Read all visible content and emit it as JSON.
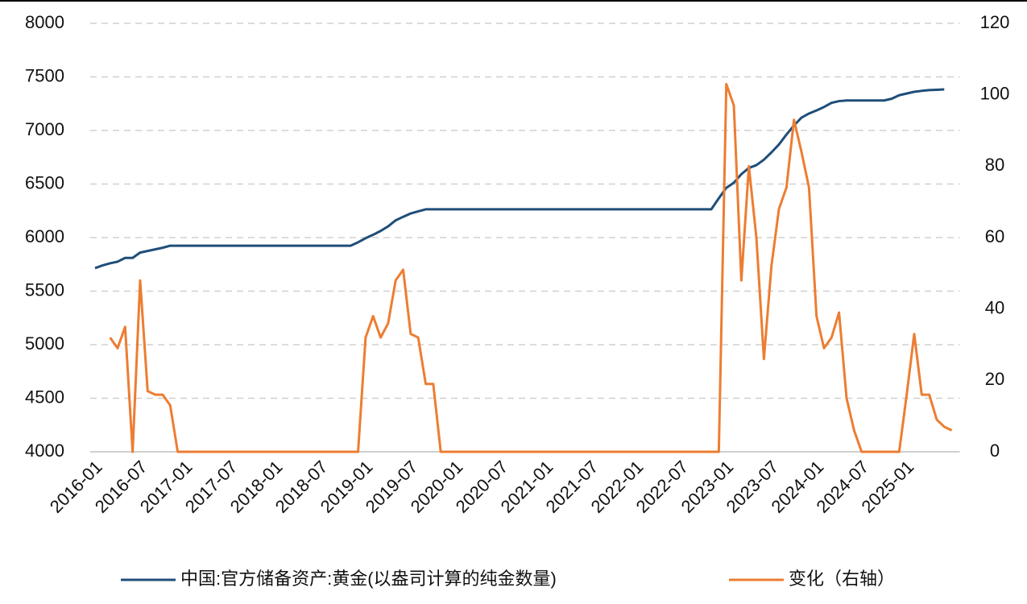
{
  "chart_data": {
    "type": "line",
    "categories": [
      "2016-01",
      null,
      null,
      null,
      null,
      null,
      "2016-07",
      null,
      null,
      null,
      null,
      null,
      "2017-01",
      null,
      null,
      null,
      null,
      null,
      "2017-07",
      null,
      null,
      null,
      null,
      null,
      "2018-01",
      null,
      null,
      null,
      null,
      null,
      "2018-07",
      null,
      null,
      null,
      null,
      null,
      "2019-01",
      null,
      null,
      null,
      null,
      null,
      "2019-07",
      null,
      null,
      null,
      null,
      null,
      "2020-01",
      null,
      null,
      null,
      null,
      null,
      "2020-07",
      null,
      null,
      null,
      null,
      null,
      "2021-01",
      null,
      null,
      null,
      null,
      null,
      "2021-07",
      null,
      null,
      null,
      null,
      null,
      "2022-01",
      null,
      null,
      null,
      null,
      null,
      "2022-07",
      null,
      null,
      null,
      null,
      null,
      "2023-01",
      null,
      null,
      null,
      null,
      null,
      "2023-07",
      null,
      null,
      null,
      null,
      null,
      "2024-01",
      null,
      null,
      null,
      null,
      null,
      "2024-07",
      null,
      null,
      null,
      null,
      null,
      "2025-01",
      null,
      null,
      null,
      null,
      null,
      null
    ],
    "series": [
      {
        "name": "中国:官方储备资产:黄金(以盎司计算的纯金数量)",
        "color": "#1f4e79",
        "values": [
          5715,
          5740,
          5760,
          5775,
          5810,
          5810,
          5860,
          5875,
          5890,
          5905,
          5924,
          5924,
          5924,
          5924,
          5924,
          5924,
          5924,
          5924,
          5924,
          5924,
          5924,
          5924,
          5924,
          5924,
          5924,
          5924,
          5924,
          5924,
          5924,
          5924,
          5924,
          5924,
          5924,
          5924,
          5924,
          5956,
          5994,
          6026,
          6062,
          6105,
          6161,
          6194,
          6225,
          6245,
          6264,
          6264,
          6264,
          6264,
          6264,
          6264,
          6264,
          6264,
          6264,
          6264,
          6264,
          6264,
          6264,
          6264,
          6264,
          6264,
          6264,
          6264,
          6264,
          6264,
          6264,
          6264,
          6264,
          6264,
          6264,
          6264,
          6264,
          6264,
          6264,
          6264,
          6264,
          6264,
          6264,
          6264,
          6264,
          6264,
          6264,
          6264,
          6264,
          6367,
          6464,
          6512,
          6592,
          6650,
          6676,
          6727,
          6795,
          6869,
          6962,
          7046,
          7120,
          7158,
          7187,
          7219,
          7258,
          7274,
          7280,
          7280,
          7280,
          7280,
          7280,
          7280,
          7296,
          7329,
          7345,
          7361,
          7370,
          7377,
          7380,
          7383,
          null
        ]
      },
      {
        "name": "变化（右轴）",
        "color": "#ed7d31",
        "axis": "y2",
        "values": [
          null,
          null,
          32,
          29,
          35,
          0,
          48,
          17,
          16,
          16,
          13,
          0,
          0,
          0,
          0,
          0,
          0,
          0,
          0,
          0,
          0,
          0,
          0,
          0,
          0,
          0,
          0,
          0,
          0,
          0,
          0,
          0,
          0,
          0,
          0,
          0,
          32,
          38,
          32,
          36,
          48,
          51,
          33,
          32,
          19,
          19,
          0,
          0,
          0,
          0,
          0,
          0,
          0,
          0,
          0,
          0,
          0,
          0,
          0,
          0,
          0,
          0,
          0,
          0,
          0,
          0,
          0,
          0,
          0,
          0,
          0,
          0,
          0,
          0,
          0,
          0,
          0,
          0,
          0,
          0,
          0,
          0,
          0,
          0,
          103,
          97,
          48,
          80,
          60,
          26,
          52,
          68,
          74,
          93,
          84,
          74,
          38,
          29,
          32,
          39,
          15,
          6,
          0,
          0,
          0,
          0,
          0,
          0,
          16,
          33,
          16,
          16,
          9,
          7,
          6
        ]
      }
    ],
    "ylim": [
      4000,
      8000
    ],
    "yticks": [
      4000,
      4500,
      5000,
      5500,
      6000,
      6500,
      7000,
      7500,
      8000
    ],
    "y2lim": [
      0,
      120
    ],
    "y2ticks": [
      0,
      20,
      40,
      60,
      80,
      100,
      120
    ],
    "grid": true
  }
}
